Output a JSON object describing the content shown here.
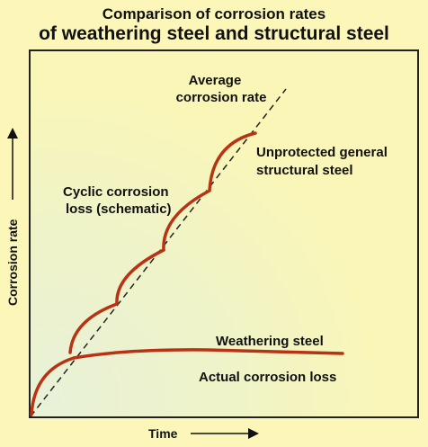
{
  "title": {
    "line1": "Comparison of corrosion rates",
    "line2": "of weathering steel and structural steel"
  },
  "axes": {
    "y_label": "Corrosion rate",
    "x_label": "Time"
  },
  "annotations": {
    "average_rate_line1": "Average",
    "average_rate_line2": "corrosion rate",
    "unprotected_line1": "Unprotected general",
    "unprotected_line2": "structural steel",
    "cyclic_line1": "Cyclic corrosion",
    "cyclic_line2": "loss (schematic)",
    "weathering": "Weathering steel",
    "actual_loss": "Actual corrosion loss"
  },
  "colors": {
    "background": "#fcf7b8",
    "curve": "#b83214",
    "frame": "#222222",
    "dashed_line": "#222222"
  }
}
